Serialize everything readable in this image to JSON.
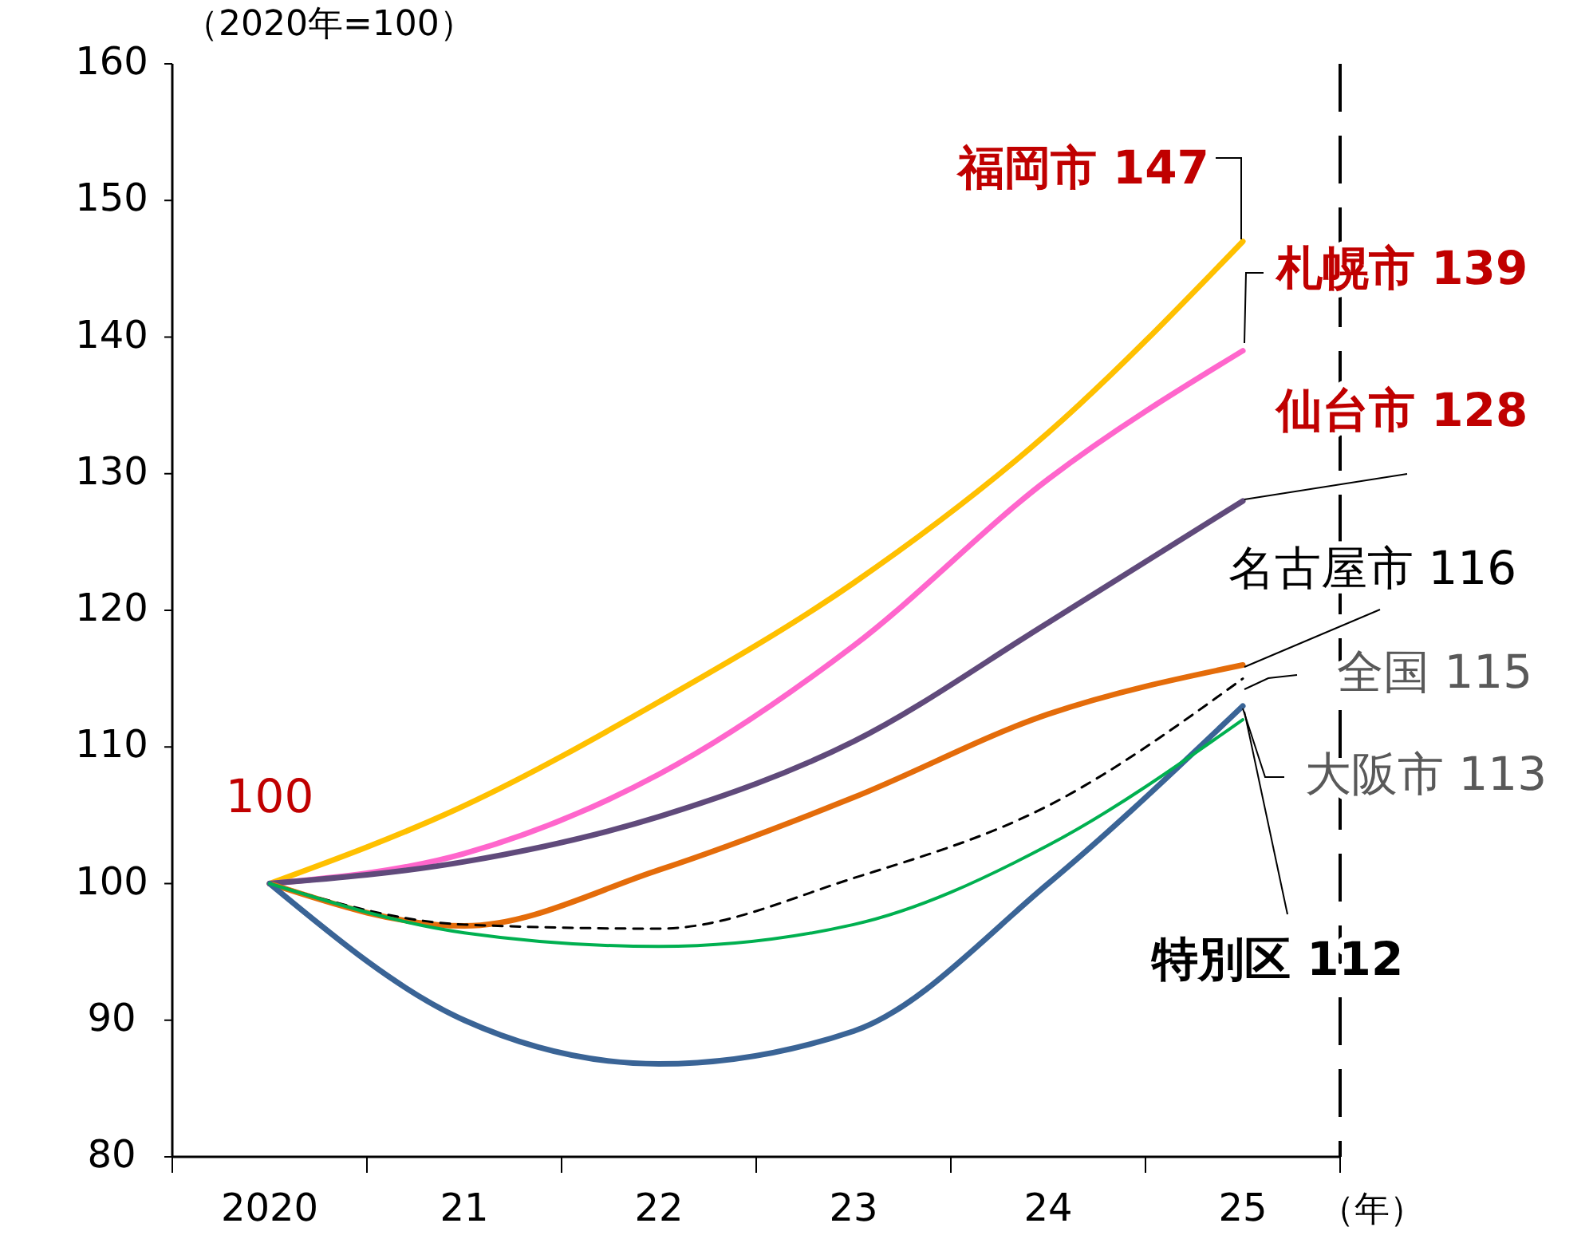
{
  "chart_data": {
    "type": "line",
    "ylabel": "（2020年=100）",
    "xlabel": "（年）",
    "categories": [
      "2020",
      "21",
      "22",
      "23",
      "24",
      "25"
    ],
    "ylim": [
      80,
      160
    ],
    "yticks": [
      80,
      90,
      100,
      110,
      120,
      130,
      140,
      150,
      160
    ],
    "grid": false,
    "legend": false,
    "marker": "none",
    "series": [
      {
        "name": "福岡市",
        "color": "#ffc000",
        "values": [
          100,
          105.7,
          113.3,
          122,
          133,
          147
        ],
        "value_labels": [
          null,
          null,
          null,
          null,
          null,
          "147"
        ]
      },
      {
        "name": "札幌市",
        "color": "#ff66cc",
        "values": [
          100,
          102.2,
          108,
          117.4,
          129.6,
          139
        ],
        "value_labels": [
          null,
          null,
          null,
          null,
          null,
          "139"
        ]
      },
      {
        "name": "仙台市",
        "color": "#604a7b",
        "values": [
          100,
          101.6,
          104.9,
          110.4,
          119.1,
          128
        ],
        "value_labels": [
          null,
          null,
          null,
          null,
          null,
          "128"
        ]
      },
      {
        "name": "名古屋市",
        "color": "#e46c0a",
        "values": [
          100,
          96.9,
          101,
          106.3,
          112.4,
          116
        ],
        "value_labels": [
          null,
          null,
          null,
          null,
          null,
          "116"
        ]
      },
      {
        "name": "全国",
        "color": "#000000",
        "line_style": "dashed",
        "values": [
          100,
          97,
          96.7,
          100.4,
          105.7,
          115
        ],
        "value_labels": [
          null,
          null,
          null,
          null,
          null,
          "115"
        ]
      },
      {
        "name": "大阪市",
        "color": "#3a6496",
        "values": [
          100,
          90,
          86.8,
          89.2,
          100,
          113
        ],
        "value_labels": [
          null,
          null,
          null,
          null,
          null,
          "113"
        ]
      },
      {
        "name": "特別区",
        "color": "#00b050",
        "values": [
          100,
          96.4,
          95.4,
          97,
          102.8,
          112
        ],
        "value_labels": [
          null,
          null,
          null,
          null,
          null,
          "112"
        ]
      }
    ],
    "annotations": [
      {
        "text": "100",
        "x": "2020",
        "y": 100
      }
    ]
  }
}
